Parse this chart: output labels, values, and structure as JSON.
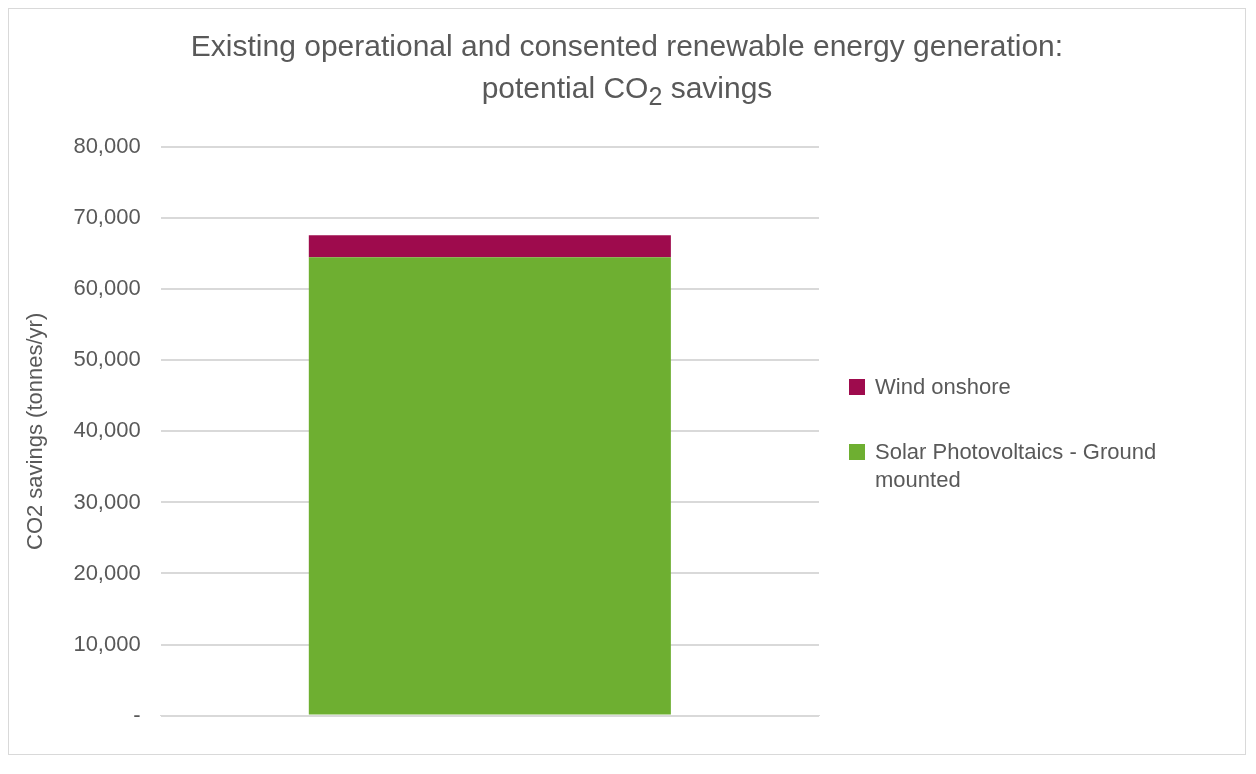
{
  "chart_data": {
    "type": "bar",
    "title": "Existing operational and consented renewable energy generation: potential CO$_{2}$ savings",
    "ylabel": "CO2 savings (tonnes/yr)",
    "categories": [
      null
    ],
    "stacked": true,
    "series": [
      {
        "name": "Solar Photovoltaics - Ground mounted",
        "color": "#6eaf31",
        "values": [
          64500
        ]
      },
      {
        "name": "Wind onshore",
        "color": "#9e0b4d",
        "values": [
          3100
        ]
      }
    ],
    "ylim": [
      0,
      80000
    ],
    "yticks": [
      {
        "value": 0,
        "label": "-"
      },
      {
        "value": 10000,
        "label": "10,000"
      },
      {
        "value": 20000,
        "label": "20,000"
      },
      {
        "value": 30000,
        "label": "30,000"
      },
      {
        "value": 40000,
        "label": "40,000"
      },
      {
        "value": 50000,
        "label": "50,000"
      },
      {
        "value": 60000,
        "label": "60,000"
      },
      {
        "value": 70000,
        "label": "70,000"
      },
      {
        "value": 80000,
        "label": "80,000"
      }
    ],
    "grid": "y",
    "legend": "right"
  }
}
